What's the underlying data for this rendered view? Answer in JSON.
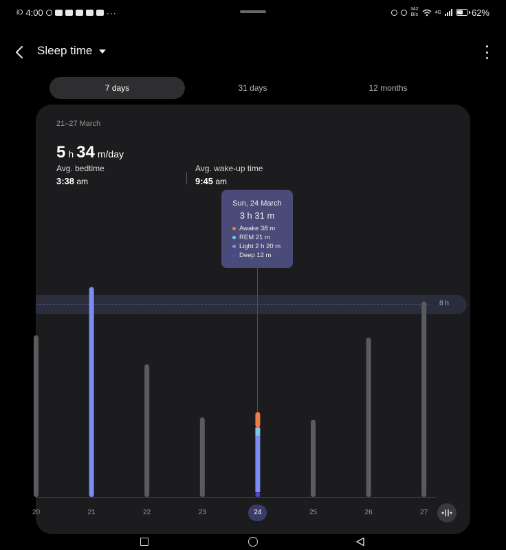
{
  "status_bar": {
    "carrier": "iD",
    "time": "4:00",
    "overflow": "···",
    "net_speed_value": "342",
    "net_speed_unit": "B/s",
    "network_type": "4G",
    "battery_percent": "62%",
    "battery_level": 0.62
  },
  "header": {
    "title": "Sleep time"
  },
  "tabs": [
    {
      "label": "7 days",
      "active": true
    },
    {
      "label": "31 days",
      "active": false
    },
    {
      "label": "12 months",
      "active": false
    }
  ],
  "summary": {
    "date_range": "21–27 March",
    "hours": "5",
    "hours_unit": "h",
    "minutes": "34",
    "minutes_unit": "m/day",
    "bedtime_label": "Avg. bedtime",
    "bedtime_value": "3:38",
    "bedtime_period": "am",
    "wake_label": "Avg. wake-up time",
    "wake_value": "9:45",
    "wake_period": "am"
  },
  "tooltip": {
    "date": "Sun, 24 March",
    "total": "3 h 31 m",
    "stages": [
      {
        "label": "Awake 38 m",
        "color": "#f07a44"
      },
      {
        "label": "REM 21 m",
        "color": "#7ec6ee"
      },
      {
        "label": "Light 2 h 20 m",
        "color": "#7b8cf5"
      },
      {
        "label": "Deep 12 m",
        "color": "#4c45d6"
      }
    ]
  },
  "chart_data": {
    "type": "bar",
    "categories": [
      "20",
      "21",
      "22",
      "23",
      "24",
      "25",
      "26",
      "27"
    ],
    "values_hours": [
      6.7,
      8.7,
      5.5,
      3.3,
      3.52,
      3.2,
      6.6,
      8.1
    ],
    "selected": "24",
    "highlighted": [
      "21"
    ],
    "goal_hours": 8,
    "goal_label": "8 h",
    "stacked_selected": {
      "deep_minutes": 12,
      "light_minutes": 140,
      "rem_minutes": 21,
      "awake_minutes": 38
    },
    "colors": {
      "default_bar": "#5b5b5d",
      "highlight_bar": "#7b8cf5",
      "awake": "#f07a44",
      "rem": "#7ec6ee",
      "light": "#7b8cf5",
      "deep": "#4c45d6"
    }
  }
}
